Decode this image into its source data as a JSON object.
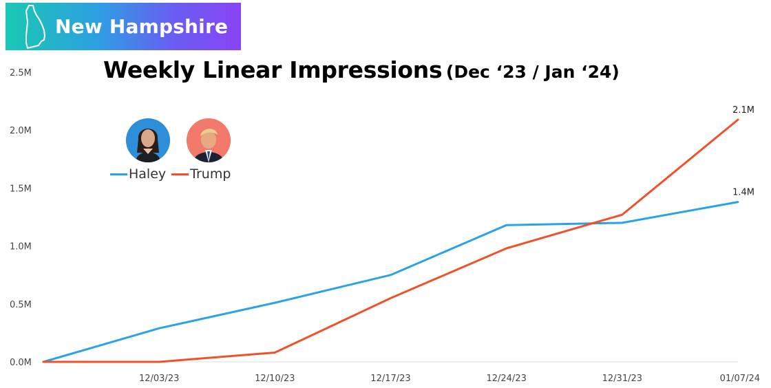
{
  "banner": {
    "state": "New Hampshire",
    "icon": "new-hampshire-outline-icon"
  },
  "colors": {
    "haley": "#29a3e6",
    "trump": "#f0502a",
    "grid": "#dddddd"
  },
  "chart_data": {
    "type": "line",
    "title": "Weekly Linear Impressions",
    "subtitle": "(Dec ‘23 / Jan ‘24)",
    "xlabel": "",
    "ylabel": "",
    "x": [
      "",
      "12/03/23",
      "12/10/23",
      "12/17/23",
      "12/24/23",
      "12/31/23",
      "01/07/24"
    ],
    "x_tick_labels": [
      "12/03/23",
      "12/10/23",
      "12/17/23",
      "12/24/23",
      "12/31/23",
      "01/07/24"
    ],
    "y_tick_labels": [
      "0.0M",
      "0.5M",
      "1.0M",
      "1.5M",
      "2.0M",
      "2.5M"
    ],
    "ylim": [
      0,
      2.5
    ],
    "legend_position": "top-left",
    "series": [
      {
        "name": "Haley",
        "values": [
          0,
          0.29,
          0.51,
          0.75,
          1.18,
          1.2,
          1.38
        ],
        "end_label": "1.4M"
      },
      {
        "name": "Trump",
        "values": [
          0,
          0,
          0.08,
          0.55,
          0.98,
          1.27,
          2.09
        ],
        "end_label": "2.1M"
      }
    ]
  }
}
